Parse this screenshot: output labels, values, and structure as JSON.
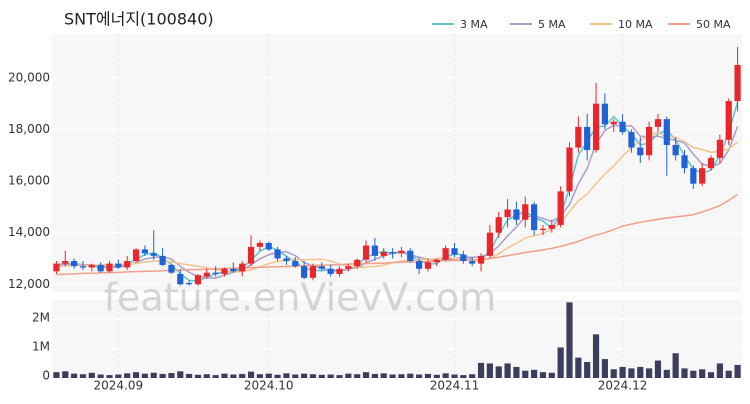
{
  "chart_data": {
    "type": "candlestick",
    "title": "SNT에너지(100840)",
    "watermark": "feature.enVievV.com",
    "categories": [
      null,
      null,
      null,
      null,
      null,
      null,
      null,
      "2024.09",
      null,
      null,
      null,
      null,
      null,
      null,
      null,
      null,
      null,
      null,
      null,
      null,
      null,
      null,
      null,
      null,
      "2024.10",
      null,
      null,
      null,
      null,
      null,
      null,
      null,
      null,
      null,
      null,
      null,
      null,
      null,
      null,
      null,
      null,
      null,
      null,
      null,
      null,
      "2024.11",
      null,
      null,
      null,
      null,
      null,
      null,
      null,
      null,
      null,
      null,
      null,
      null,
      null,
      null,
      null,
      null,
      null,
      null,
      "2024.12",
      null,
      null,
      null,
      null,
      null,
      null,
      null,
      null,
      null,
      null,
      null,
      null,
      null
    ],
    "open": [
      12500,
      12800,
      12900,
      12700,
      12650,
      12750,
      12500,
      12800,
      12650,
      12900,
      13350,
      13200,
      13100,
      12750,
      12400,
      12050,
      12000,
      12300,
      12450,
      12400,
      12600,
      12500,
      12800,
      13450,
      13600,
      13350,
      13000,
      12900,
      12700,
      12250,
      12700,
      12600,
      12400,
      12600,
      12700,
      12950,
      13500,
      13100,
      13250,
      13200,
      13300,
      12900,
      12600,
      12850,
      12950,
      13400,
      13150,
      12900,
      12800,
      13100,
      14000,
      14600,
      14900,
      14500,
      15100,
      14100,
      14150,
      14300,
      15600,
      17300,
      18100,
      17200,
      19000,
      18200,
      18300,
      17900,
      17300,
      17000,
      18100,
      18400,
      17400,
      17000,
      16500,
      15900,
      16500,
      16900,
      17600,
      19100
    ],
    "high": [
      12900,
      13300,
      13000,
      12900,
      12800,
      12850,
      12900,
      12950,
      13100,
      13400,
      13500,
      14100,
      13400,
      12800,
      12600,
      12150,
      12400,
      12600,
      12700,
      12650,
      12850,
      12900,
      13900,
      13700,
      13650,
      13450,
      13100,
      13050,
      12900,
      12800,
      12850,
      12750,
      12700,
      12800,
      13000,
      13700,
      13800,
      13400,
      13400,
      13450,
      13400,
      13050,
      13000,
      13000,
      13500,
      13600,
      13300,
      13050,
      13200,
      14300,
      14800,
      15300,
      15200,
      15400,
      15200,
      14300,
      14500,
      15800,
      17500,
      18500,
      18600,
      19800,
      19400,
      18400,
      18600,
      18000,
      17700,
      18300,
      18600,
      18500,
      17700,
      17200,
      16600,
      16700,
      17000,
      17800,
      19200,
      21200
    ],
    "low": [
      12400,
      12700,
      12600,
      12550,
      12500,
      12450,
      12450,
      12600,
      12550,
      12850,
      13100,
      12950,
      12700,
      12400,
      11950,
      11950,
      11950,
      12200,
      12300,
      12300,
      12450,
      12300,
      12700,
      13300,
      13300,
      12900,
      12750,
      12650,
      12200,
      12150,
      12500,
      12300,
      12300,
      12500,
      12600,
      12850,
      12900,
      13000,
      13000,
      13050,
      12850,
      12400,
      12500,
      12700,
      12900,
      13050,
      12800,
      12700,
      12500,
      13000,
      13800,
      14200,
      14300,
      14200,
      13900,
      13900,
      14000,
      14200,
      15400,
      17100,
      16800,
      17100,
      18000,
      17900,
      17800,
      17100,
      16700,
      16800,
      17900,
      16200,
      16800,
      16300,
      15700,
      15800,
      16400,
      16700,
      17400,
      18700
    ],
    "close": [
      12800,
      12900,
      12700,
      12650,
      12750,
      12500,
      12800,
      12650,
      12900,
      13350,
      13200,
      13100,
      12750,
      12450,
      12000,
      12000,
      12350,
      12450,
      12400,
      12600,
      12500,
      12800,
      13450,
      13600,
      13350,
      13000,
      12900,
      12700,
      12250,
      12700,
      12600,
      12400,
      12600,
      12700,
      12950,
      13500,
      13100,
      13250,
      13200,
      13300,
      12900,
      12600,
      12850,
      12950,
      13400,
      13150,
      12900,
      12800,
      13100,
      14000,
      14600,
      14900,
      14500,
      15100,
      14100,
      14150,
      14300,
      15600,
      17300,
      18100,
      17200,
      19000,
      18200,
      18300,
      17900,
      17300,
      17000,
      18100,
      18400,
      17400,
      17000,
      16500,
      15900,
      16500,
      16900,
      17600,
      19100,
      20500
    ],
    "volume": [
      200000,
      230000,
      150000,
      130000,
      180000,
      120000,
      100000,
      120000,
      160000,
      200000,
      150000,
      180000,
      140000,
      170000,
      230000,
      140000,
      110000,
      130000,
      100000,
      150000,
      120000,
      140000,
      220000,
      130000,
      150000,
      110000,
      160000,
      120000,
      150000,
      130000,
      110000,
      120000,
      100000,
      150000,
      130000,
      200000,
      140000,
      160000,
      120000,
      130000,
      150000,
      120000,
      140000,
      110000,
      160000,
      120000,
      100000,
      130000,
      520000,
      500000,
      400000,
      500000,
      380000,
      250000,
      280000,
      200000,
      180000,
      1050000,
      2600000,
      700000,
      550000,
      1500000,
      650000,
      300000,
      380000,
      330000,
      380000,
      330000,
      600000,
      280000,
      850000,
      330000,
      250000,
      300000,
      200000,
      500000,
      250000,
      450000
    ],
    "colors": {
      "up": "#e8262b",
      "down": "#1f63d6",
      "volume": "#3d3d5c"
    },
    "series": [
      {
        "name": "3 MA",
        "color": "#5cc6d0",
        "values": [
          12750,
          12800,
          12800,
          12750,
          12700,
          12630,
          12680,
          12650,
          12780,
          12970,
          13150,
          13220,
          13020,
          12770,
          12400,
          12150,
          12120,
          12270,
          12400,
          12480,
          12500,
          12630,
          12920,
          13280,
          13470,
          13320,
          13080,
          12870,
          12620,
          12550,
          12520,
          12570,
          12530,
          12570,
          12750,
          13050,
          13180,
          13280,
          13180,
          13250,
          13130,
          12930,
          12780,
          12800,
          13070,
          13170,
          13150,
          12950,
          12930,
          13300,
          13900,
          14500,
          14670,
          14830,
          14570,
          14450,
          14180,
          14680,
          15730,
          17000,
          17530,
          18100,
          18130,
          18500,
          18130,
          17830,
          17400,
          17470,
          17830,
          17970,
          17600,
          16970,
          16470,
          16300,
          16430,
          17000,
          17870,
          19070
        ]
      },
      {
        "name": "5 MA",
        "color": "#ab9dca",
        "values": [
          12750,
          12770,
          12780,
          12760,
          12760,
          12700,
          12680,
          12670,
          12720,
          12840,
          12980,
          13040,
          13070,
          12970,
          12700,
          12460,
          12310,
          12250,
          12240,
          12360,
          12460,
          12550,
          12750,
          12990,
          13140,
          13240,
          13260,
          13110,
          12840,
          12710,
          12630,
          12530,
          12510,
          12600,
          12650,
          12830,
          12970,
          13100,
          13200,
          13270,
          13150,
          13050,
          12970,
          12920,
          12940,
          12990,
          13050,
          13040,
          13070,
          13190,
          13480,
          13880,
          14220,
          14620,
          14640,
          14550,
          14430,
          14650,
          15090,
          15890,
          16500,
          17440,
          17960,
          18160,
          18120,
          18140,
          17740,
          17720,
          17740,
          17640,
          17580,
          17480,
          17040,
          16660,
          16560,
          16680,
          17200,
          18120
        ]
      },
      {
        "name": "10 MA",
        "color": "#f4c48e",
        "values": [
          12700,
          12710,
          12720,
          12730,
          12740,
          12750,
          12760,
          12770,
          12780,
          12800,
          12860,
          12900,
          12900,
          12870,
          12800,
          12750,
          12700,
          12640,
          12560,
          12520,
          12480,
          12490,
          12560,
          12670,
          12800,
          12880,
          12940,
          12960,
          12950,
          12960,
          12970,
          12900,
          12790,
          12700,
          12650,
          12670,
          12690,
          12740,
          12840,
          12900,
          12930,
          12950,
          12970,
          12990,
          13040,
          13000,
          12980,
          12940,
          12930,
          13000,
          13180,
          13410,
          13580,
          13800,
          13880,
          13980,
          14120,
          14400,
          14820,
          15230,
          15490,
          15900,
          16270,
          16590,
          16970,
          17290,
          17560,
          17810,
          17880,
          17720,
          17700,
          17530,
          17300,
          17220,
          17120,
          17150,
          17250,
          17510
        ]
      },
      {
        "name": "50 MA",
        "color": "#f0a08a",
        "values": [
          12380,
          12390,
          12400,
          12420,
          12430,
          12440,
          12450,
          12460,
          12480,
          12490,
          12500,
          12510,
          12520,
          12540,
          12550,
          12560,
          12570,
          12580,
          12600,
          12610,
          12620,
          12630,
          12640,
          12660,
          12670,
          12680,
          12690,
          12700,
          12720,
          12730,
          12740,
          12750,
          12760,
          12780,
          12790,
          12800,
          12810,
          12820,
          12840,
          12850,
          12860,
          12870,
          12880,
          12900,
          12910,
          12920,
          12930,
          12940,
          12960,
          13000,
          13050,
          13110,
          13170,
          13230,
          13280,
          13330,
          13390,
          13470,
          13560,
          13660,
          13800,
          13900,
          14000,
          14120,
          14250,
          14330,
          14400,
          14460,
          14520,
          14570,
          14610,
          14650,
          14700,
          14800,
          14920,
          15050,
          15250,
          15480
        ]
      }
    ],
    "ylim": [
      11700,
      21700
    ],
    "yticks": [
      {
        "value": 12000,
        "label": "12,000"
      },
      {
        "value": 14000,
        "label": "14,000"
      },
      {
        "value": 16000,
        "label": "16,000"
      },
      {
        "value": 18000,
        "label": "18,000"
      },
      {
        "value": 20000,
        "label": "20,000"
      }
    ],
    "y2lim": [
      0,
      2680000
    ],
    "y2ticks": [
      0,
      {
        "value": 1000000,
        "label": "1M"
      },
      {
        "value": 2000000,
        "label": "2M"
      }
    ],
    "grid": true
  }
}
